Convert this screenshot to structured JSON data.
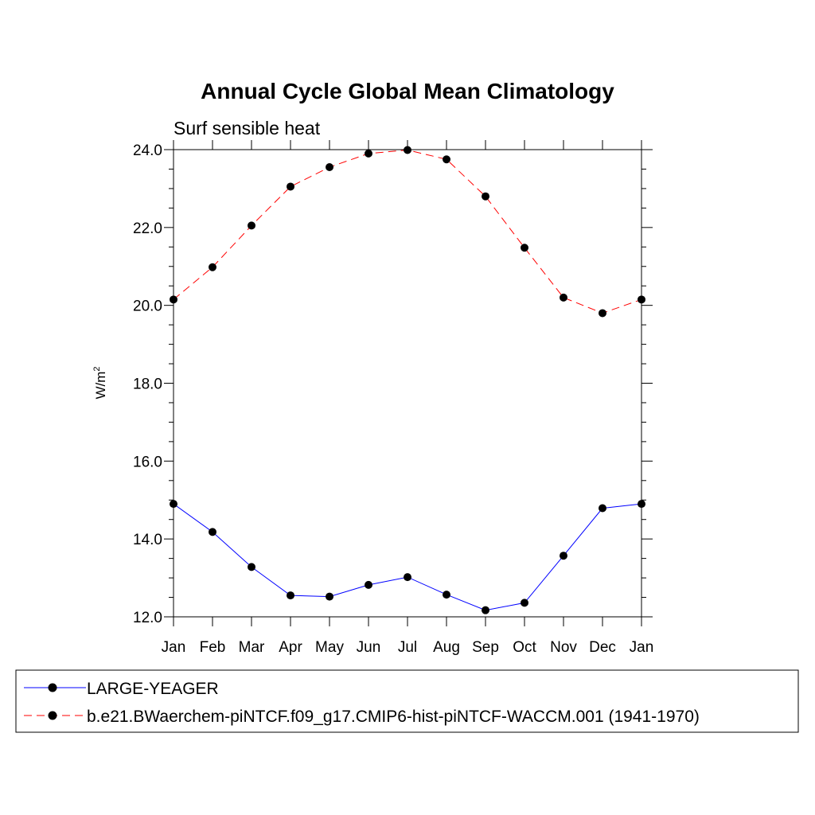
{
  "chart_data": {
    "type": "line",
    "title": "Annual Cycle Global Mean Climatology",
    "subtitle": "Surf sensible heat",
    "ylabel": "W/m",
    "ylabel_superscript": "2",
    "xlabel": "",
    "categories": [
      "Jan",
      "Feb",
      "Mar",
      "Apr",
      "May",
      "Jun",
      "Jul",
      "Aug",
      "Sep",
      "Oct",
      "Nov",
      "Dec",
      "Jan"
    ],
    "ylim": [
      12.0,
      24.0
    ],
    "yticks": [
      "12.0",
      "14.0",
      "16.0",
      "18.0",
      "20.0",
      "22.0",
      "24.0"
    ],
    "ytick_values": [
      12,
      14,
      16,
      18,
      20,
      22,
      24
    ],
    "grid": false,
    "legend_position": "bottom",
    "series": [
      {
        "name": "LARGE-YEAGER",
        "color": "#0000ff",
        "dash": "solid",
        "marker": "filled-circle",
        "values": [
          14.9,
          14.18,
          13.28,
          12.55,
          12.52,
          12.82,
          13.02,
          12.57,
          12.17,
          12.36,
          13.57,
          14.79,
          14.9
        ]
      },
      {
        "name": "b.e21.BWaerchem-piNTCF.f09_g17.CMIP6-hist-piNTCF-WACCM.001 (1941-1970)",
        "color": "#ff0000",
        "dash": "dashed",
        "marker": "filled-circle",
        "values": [
          20.15,
          20.98,
          22.05,
          23.05,
          23.55,
          23.9,
          23.99,
          23.75,
          22.8,
          21.48,
          20.2,
          19.8,
          20.15
        ]
      }
    ]
  }
}
